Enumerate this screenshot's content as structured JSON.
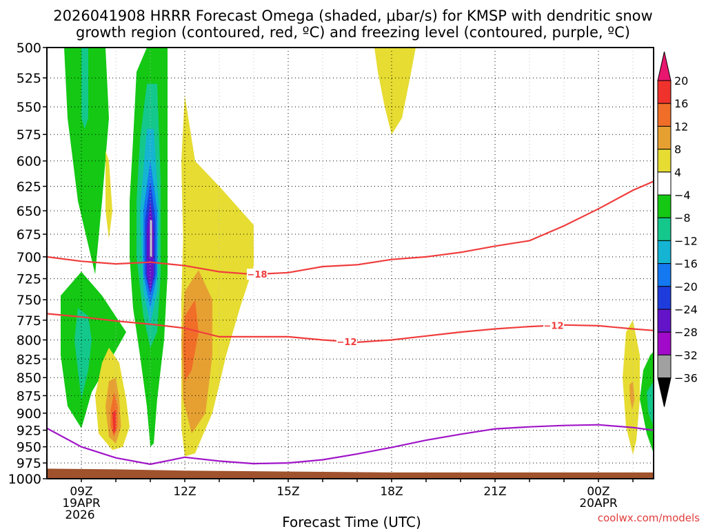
{
  "chart_data": {
    "type": "heatmap",
    "title_line1": "2026041908 HRRR Forecast Omega (shaded, μbar/s) for KMSP with dendritic snow",
    "title_line2": "growth region (contoured, red, ºC) and freezing level (contoured, purple, ºC)",
    "xlabel": "Forecast Time (UTC)",
    "credit": "coolwx.com/models",
    "x_range_hours": [
      8,
      25.6
    ],
    "y_range_hpa": [
      500,
      1000
    ],
    "y_ticks": [
      "500",
      "525",
      "550",
      "575",
      "600",
      "625",
      "650",
      "675",
      "700",
      "725",
      "750",
      "775",
      "800",
      "825",
      "850",
      "875",
      "900",
      "925",
      "950",
      "975",
      "1000"
    ],
    "x_ticks": [
      {
        "hour": 9,
        "label": "09Z",
        "sub1": "19APR",
        "sub2": "2026"
      },
      {
        "hour": 12,
        "label": "12Z",
        "sub1": "",
        "sub2": ""
      },
      {
        "hour": 15,
        "label": "15Z",
        "sub1": "",
        "sub2": ""
      },
      {
        "hour": 18,
        "label": "18Z",
        "sub1": "",
        "sub2": ""
      },
      {
        "hour": 21,
        "label": "21Z",
        "sub1": "",
        "sub2": ""
      },
      {
        "hour": 24,
        "label": "00Z",
        "sub1": "20APR",
        "sub2": ""
      }
    ],
    "colorbar": {
      "labels": [
        "20",
        "16",
        "12",
        "8",
        "4",
        "−4",
        "−8",
        "−12",
        "−16",
        "−20",
        "−24",
        "−28",
        "−32",
        "−36"
      ],
      "colors": [
        "#e8166e",
        "#f0322d",
        "#f06e28",
        "#e6a032",
        "#e6dc32",
        "#ffffff",
        "#14c814",
        "#14c88c",
        "#14b4d2",
        "#1478f0",
        "#1e3cdc",
        "#6414c8",
        "#a00ac8",
        "#a0a0a0",
        "#000000"
      ]
    },
    "series": [
      {
        "name": "-18 C isotherm",
        "color": "#f03c3c",
        "label": "−18",
        "x": [
          8,
          9,
          10,
          11,
          12,
          13,
          14,
          15,
          16,
          17,
          18,
          19,
          20,
          21,
          22,
          23,
          24,
          25,
          25.6
        ],
        "y": [
          700,
          705,
          708,
          706,
          710,
          717,
          720,
          718,
          711,
          709,
          703,
          700,
          695,
          688,
          682,
          666,
          648,
          629,
          620
        ]
      },
      {
        "name": "-12 C isotherm",
        "color": "#f03c3c",
        "label": "−12",
        "x": [
          8,
          9,
          10,
          11,
          12,
          13,
          14,
          15,
          16,
          17,
          18,
          19,
          20,
          21,
          22,
          23,
          24,
          25,
          25.6
        ],
        "y": [
          767,
          771,
          776,
          780,
          785,
          796,
          796,
          796,
          800,
          803,
          800,
          795,
          790,
          786,
          783,
          781,
          782,
          786,
          788
        ]
      },
      {
        "name": "freezing level",
        "color": "#a014c8",
        "x": [
          8,
          9,
          10,
          11,
          12,
          13,
          14,
          15,
          16,
          17,
          18,
          19,
          20,
          21,
          22,
          23,
          24,
          25,
          25.6
        ],
        "y": [
          922,
          950,
          967,
          977,
          966,
          972,
          976,
          975,
          970,
          961,
          951,
          940,
          931,
          923,
          920,
          918,
          917,
          921,
          925
        ]
      }
    ],
    "shaded_regions": [
      {
        "color": "#14c814",
        "pts": [
          [
            8.5,
            500
          ],
          [
            9.7,
            500
          ],
          [
            9.8,
            560
          ],
          [
            9.6,
            640
          ],
          [
            9.4,
            720
          ],
          [
            8.9,
            640
          ],
          [
            8.6,
            560
          ]
        ]
      },
      {
        "color": "#14c88c",
        "pts": [
          [
            9.0,
            500
          ],
          [
            9.2,
            500
          ],
          [
            9.2,
            560
          ],
          [
            9.1,
            570
          ],
          [
            9.0,
            560
          ]
        ]
      },
      {
        "color": "#14c814",
        "pts": [
          [
            8.4,
            745
          ],
          [
            9.0,
            717
          ],
          [
            9.6,
            745
          ],
          [
            10.3,
            790
          ],
          [
            9.8,
            830
          ],
          [
            9.3,
            870
          ],
          [
            9.1,
            905
          ],
          [
            9.0,
            922
          ],
          [
            8.6,
            890
          ],
          [
            8.4,
            820
          ]
        ]
      },
      {
        "color": "#14c88c",
        "pts": [
          [
            8.9,
            760
          ],
          [
            9.2,
            770
          ],
          [
            9.3,
            800
          ],
          [
            9.2,
            840
          ],
          [
            9.0,
            880
          ],
          [
            8.9,
            840
          ],
          [
            8.8,
            800
          ]
        ]
      },
      {
        "color": "#14c814",
        "pts": [
          [
            10.9,
            500
          ],
          [
            11.5,
            500
          ],
          [
            11.5,
            560
          ],
          [
            11.5,
            640
          ],
          [
            11.5,
            720
          ],
          [
            11.4,
            800
          ],
          [
            11.2,
            880
          ],
          [
            11.1,
            945
          ],
          [
            11.0,
            950
          ],
          [
            10.9,
            890
          ],
          [
            10.7,
            820
          ],
          [
            10.5,
            760
          ],
          [
            10.4,
            700
          ],
          [
            10.4,
            640
          ],
          [
            10.5,
            580
          ],
          [
            10.6,
            520
          ]
        ]
      },
      {
        "color": "#14c88c",
        "pts": [
          [
            10.9,
            530
          ],
          [
            11.2,
            530
          ],
          [
            11.3,
            620
          ],
          [
            11.3,
            720
          ],
          [
            11.2,
            790
          ],
          [
            11.0,
            810
          ],
          [
            10.8,
            770
          ],
          [
            10.6,
            700
          ],
          [
            10.6,
            640
          ],
          [
            10.7,
            580
          ]
        ]
      },
      {
        "color": "#14b4d2",
        "pts": [
          [
            10.9,
            570
          ],
          [
            11.1,
            570
          ],
          [
            11.25,
            650
          ],
          [
            11.2,
            740
          ],
          [
            11.0,
            780
          ],
          [
            10.8,
            740
          ],
          [
            10.7,
            650
          ]
        ]
      },
      {
        "color": "#1478f0",
        "pts": [
          [
            11.0,
            600
          ],
          [
            11.2,
            650
          ],
          [
            11.2,
            720
          ],
          [
            11.0,
            760
          ],
          [
            10.8,
            720
          ],
          [
            10.8,
            650
          ]
        ]
      },
      {
        "color": "#1e3cdc",
        "pts": [
          [
            11.0,
            620
          ],
          [
            11.15,
            660
          ],
          [
            11.15,
            720
          ],
          [
            11.0,
            745
          ],
          [
            10.85,
            720
          ],
          [
            10.85,
            660
          ]
        ]
      },
      {
        "color": "#6414c8",
        "pts": [
          [
            11.0,
            640
          ],
          [
            11.1,
            670
          ],
          [
            11.1,
            720
          ],
          [
            11.0,
            740
          ],
          [
            10.9,
            720
          ],
          [
            10.9,
            670
          ]
        ]
      },
      {
        "color": "#e6dc32",
        "pts": [
          [
            9.7,
            590
          ],
          [
            9.8,
            600
          ],
          [
            9.9,
            650
          ],
          [
            9.8,
            680
          ],
          [
            9.7,
            650
          ]
        ]
      },
      {
        "color": "#e6dc32",
        "pts": [
          [
            9.4,
            875
          ],
          [
            9.6,
            830
          ],
          [
            9.8,
            810
          ],
          [
            10.1,
            830
          ],
          [
            10.3,
            880
          ],
          [
            10.4,
            920
          ],
          [
            10.2,
            950
          ],
          [
            9.9,
            955
          ],
          [
            9.5,
            930
          ]
        ]
      },
      {
        "color": "#e6a032",
        "pts": [
          [
            9.7,
            890
          ],
          [
            9.8,
            855
          ],
          [
            10.0,
            850
          ],
          [
            10.1,
            880
          ],
          [
            10.15,
            920
          ],
          [
            10.0,
            945
          ],
          [
            9.8,
            935
          ]
        ]
      },
      {
        "color": "#f06e28",
        "pts": [
          [
            9.85,
            895
          ],
          [
            9.95,
            870
          ],
          [
            10.05,
            890
          ],
          [
            10.05,
            920
          ],
          [
            9.95,
            935
          ],
          [
            9.85,
            920
          ]
        ]
      },
      {
        "color": "#f0322d",
        "pts": [
          [
            9.9,
            900
          ],
          [
            10.0,
            895
          ],
          [
            10.0,
            925
          ],
          [
            9.93,
            930
          ]
        ]
      },
      {
        "color": "#e6dc32",
        "pts": [
          [
            11.9,
            600
          ],
          [
            12.0,
            540
          ],
          [
            12.3,
            600
          ],
          [
            13.0,
            625
          ],
          [
            14.0,
            665
          ],
          [
            14.0,
            710
          ],
          [
            13.6,
            760
          ],
          [
            13.2,
            820
          ],
          [
            13.0,
            860
          ],
          [
            12.8,
            900
          ],
          [
            12.3,
            960
          ],
          [
            12.0,
            965
          ],
          [
            11.9,
            920
          ],
          [
            11.9,
            850
          ],
          [
            11.9,
            750
          ],
          [
            11.95,
            680
          ]
        ]
      },
      {
        "color": "#e6a032",
        "pts": [
          [
            12.0,
            740
          ],
          [
            12.4,
            715
          ],
          [
            12.8,
            750
          ],
          [
            12.8,
            820
          ],
          [
            12.6,
            900
          ],
          [
            12.2,
            930
          ],
          [
            11.95,
            880
          ],
          [
            11.9,
            800
          ]
        ]
      },
      {
        "color": "#f06e28",
        "pts": [
          [
            12.0,
            770
          ],
          [
            12.3,
            750
          ],
          [
            12.4,
            790
          ],
          [
            12.2,
            840
          ],
          [
            12.0,
            855
          ],
          [
            11.95,
            810
          ]
        ]
      },
      {
        "color": "#e6dc32",
        "pts": [
          [
            17.5,
            500
          ],
          [
            18.7,
            500
          ],
          [
            18.5,
            530
          ],
          [
            18.3,
            560
          ],
          [
            18.0,
            575
          ],
          [
            17.8,
            550
          ],
          [
            17.6,
            520
          ]
        ]
      },
      {
        "color": "#e6dc32",
        "pts": [
          [
            24.8,
            790
          ],
          [
            25.0,
            775
          ],
          [
            25.2,
            820
          ],
          [
            25.2,
            880
          ],
          [
            25.1,
            940
          ],
          [
            25.0,
            962
          ],
          [
            24.8,
            920
          ],
          [
            24.7,
            850
          ]
        ]
      },
      {
        "color": "#e6a032",
        "pts": [
          [
            24.9,
            860
          ],
          [
            25.0,
            855
          ],
          [
            25.05,
            880
          ],
          [
            24.98,
            895
          ],
          [
            24.92,
            880
          ]
        ]
      },
      {
        "color": "#14c814",
        "pts": [
          [
            25.6,
            815
          ],
          [
            25.6,
            960
          ],
          [
            25.4,
            930
          ],
          [
            25.2,
            880
          ],
          [
            25.3,
            840
          ],
          [
            25.5,
            820
          ]
        ]
      },
      {
        "color": "#14c88c",
        "pts": [
          [
            25.6,
            855
          ],
          [
            25.6,
            920
          ],
          [
            25.45,
            900
          ],
          [
            25.4,
            870
          ]
        ]
      }
    ]
  }
}
